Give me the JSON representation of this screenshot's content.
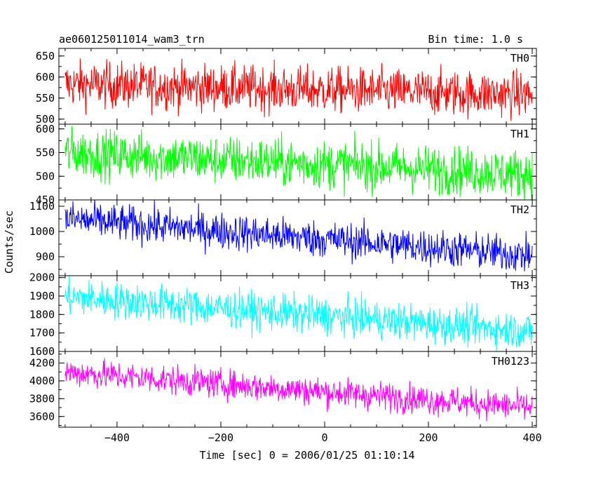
{
  "header": {
    "title": "ae060125011014_wam3_trn",
    "bin_time": "Bin time: 1.0 s"
  },
  "chart_data": {
    "type": "line",
    "xlabel": "Time [sec] 0 = 2006/01/25 01:10:14",
    "ylabel": "Counts/sec",
    "xlim": [
      -512,
      408
    ],
    "x_ticks": [
      -400,
      -200,
      0,
      200,
      400
    ],
    "x_tick_labels": [
      "−400",
      "−200",
      "0",
      "200",
      "400"
    ],
    "x_range": [
      -500,
      400
    ],
    "bin_seconds": 1.0,
    "panels": [
      {
        "name": "TH0",
        "color": "#ff0000",
        "ylim": [
          488,
          668
        ],
        "y_ticks": [
          500,
          550,
          600,
          650
        ],
        "trend": {
          "start": 583,
          "end": 558
        },
        "noise_amplitude": 30
      },
      {
        "name": "TH1",
        "color": "#00ff00",
        "ylim": [
          450,
          610
        ],
        "y_ticks": [
          450,
          500,
          550,
          600
        ],
        "trend": {
          "start": 550,
          "end": 505
        },
        "noise_amplitude": 28
      },
      {
        "name": "TH2",
        "color": "#0000ff",
        "ylim": [
          825,
          1125
        ],
        "y_ticks": [
          900,
          1000,
          1100
        ],
        "trend": {
          "start": 1050,
          "end": 905
        },
        "noise_amplitude": 40
      },
      {
        "name": "TH3",
        "color": "#00ffff",
        "ylim": [
          1600,
          2010
        ],
        "y_ticks": [
          1600,
          1700,
          1800,
          1900,
          2000
        ],
        "trend": {
          "start": 1895,
          "end": 1710
        },
        "noise_amplitude": 55
      },
      {
        "name": "TH0123",
        "color": "#ff00ff",
        "ylim": [
          3480,
          4330
        ],
        "y_ticks": [
          3600,
          3800,
          4000,
          4200
        ],
        "trend": {
          "start": 4100,
          "end": 3700
        },
        "noise_amplitude": 90
      }
    ]
  }
}
